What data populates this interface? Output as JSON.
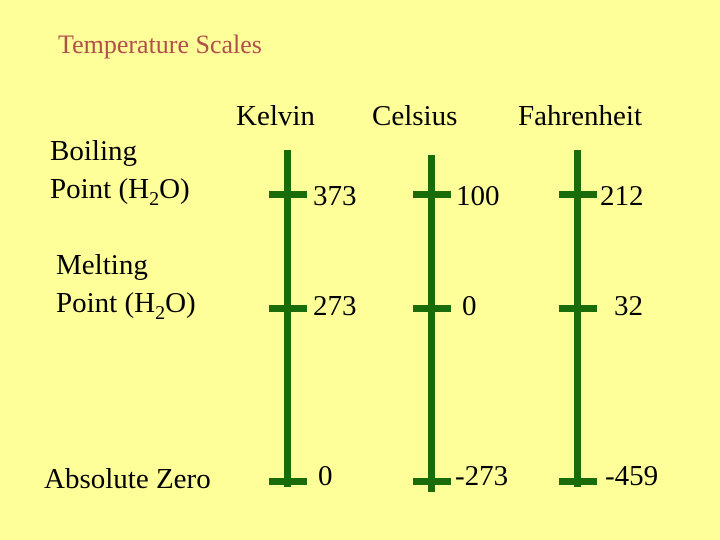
{
  "title": "Temperature Scales",
  "columns": [
    "Kelvin",
    "Celsius",
    "Fahrenheit"
  ],
  "rows": [
    {
      "label_line1": "Boiling",
      "label_line2_pre": "Point (H",
      "label_sub": "2",
      "label_line2_post": "O)",
      "values": [
        "373",
        "100",
        "212"
      ]
    },
    {
      "label_line1": "Melting",
      "label_line2_pre": "Point (H",
      "label_sub": "2",
      "label_line2_post": "O)",
      "values": [
        "273",
        "0",
        "32"
      ]
    },
    {
      "label": "Absolute Zero",
      "values": [
        "0",
        "-273",
        "-459"
      ]
    }
  ]
}
